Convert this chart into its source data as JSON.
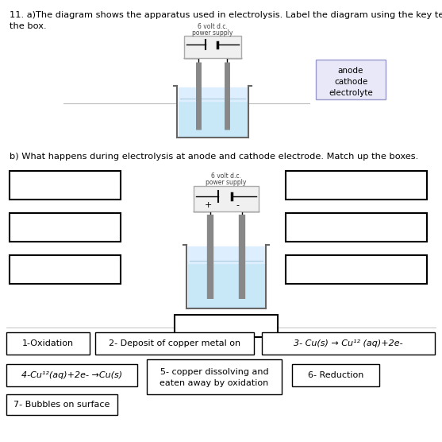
{
  "title_line1": "11. a)The diagram shows the apparatus used in electrolysis. Label the diagram using the key terms in",
  "title_line2": "the box.",
  "part_b_text": "b) What happens during electrolysis at anode and cathode electrode. Match up the boxes.",
  "key_terms": [
    "anode",
    "cathode",
    "electrolyte"
  ],
  "ps_label1": "6 volt d.c.",
  "ps_label2": "power supply",
  "bg_color": "#ffffff",
  "liquid_color": "#c8e8f8",
  "liquid_color_top": "#ddeeff",
  "beaker_outline": "#666666",
  "electrode_color": "#888888",
  "key_box_bg": "#e8e8f8",
  "key_box_edge": "#9999cc",
  "box1_label": "1-Oxidation",
  "box2_label": "2- Deposit of copper metal on",
  "box3_label": "3- Cu(s) → Cu¹² (aq)+2e-",
  "box4_label": "4-Cu¹²(aq)+2e- →Cu(s)",
  "box5_line1": "5- copper dissolving and",
  "box5_line2": "eaten away by oxidation",
  "box6_label": "6- Reduction",
  "box7_label": "7- Bubbles on surface"
}
